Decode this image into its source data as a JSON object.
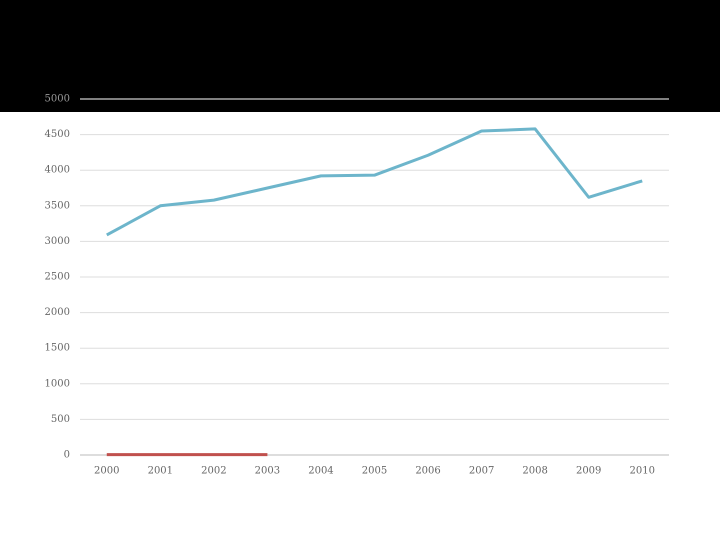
{
  "chart_data": {
    "type": "line",
    "categories": [
      "2000",
      "2001",
      "2002",
      "2003",
      "2004",
      "2005",
      "2006",
      "2007",
      "2008",
      "2009",
      "2010"
    ],
    "series": [
      {
        "color": "#6db5cb",
        "values": [
          3090,
          3500,
          3580,
          3750,
          3920,
          3930,
          4210,
          4550,
          4580,
          3620,
          3850
        ]
      },
      {
        "color": "#c0504d",
        "values": [
          5,
          5,
          5,
          5,
          null,
          null,
          null,
          null,
          null,
          null,
          null
        ]
      }
    ],
    "ylim": [
      0,
      5000
    ],
    "yticks": [
      0,
      500,
      1000,
      1500,
      2000,
      2500,
      3000,
      3500,
      4000,
      4500,
      5000
    ],
    "grid": true
  }
}
